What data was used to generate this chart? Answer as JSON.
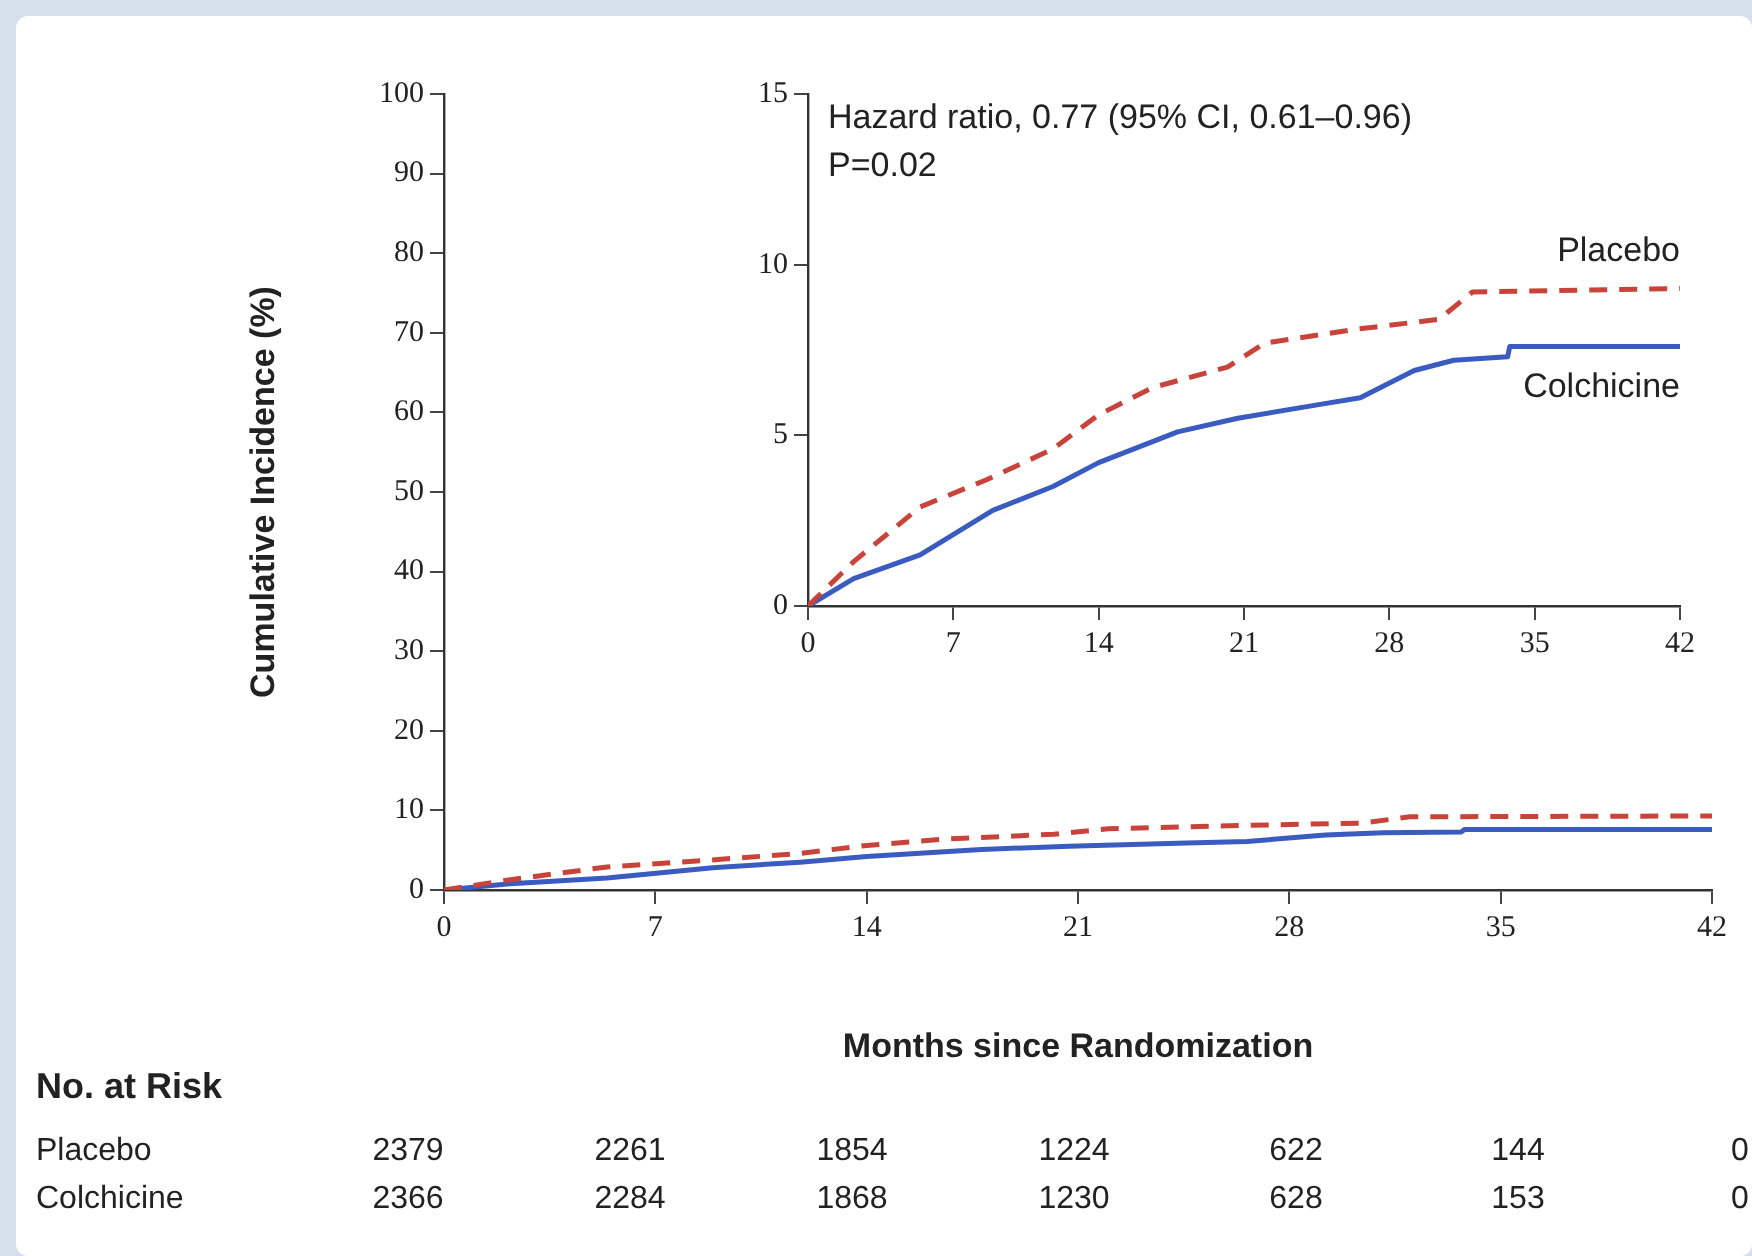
{
  "chart_data": [
    {
      "type": "line",
      "xlabel": "Months since Randomization",
      "ylabel": "Cumulative Incidence (%)",
      "xlim": [
        0,
        42
      ],
      "xticks": [
        0,
        7,
        14,
        21,
        28,
        35,
        42
      ],
      "ylim": [
        0,
        100
      ],
      "yticks": [
        0,
        10,
        20,
        30,
        40,
        50,
        60,
        70,
        80,
        90,
        100
      ],
      "grid": false,
      "legend": false,
      "series": [
        {
          "color": "#c8443a",
          "line_style": "dashed",
          "x": [
            0,
            2.2,
            5.4,
            8.6,
            11.8,
            14,
            16.6,
            20.2,
            22,
            26.3,
            30.4,
            32,
            42
          ],
          "values": [
            0,
            1.3,
            2.9,
            3.7,
            4.6,
            5.6,
            6.4,
            7.0,
            7.7,
            8.1,
            8.4,
            9.2,
            9.3
          ]
        },
        {
          "color": "#3a5bbf",
          "line_style": "solid",
          "x": [
            0,
            2.2,
            5.4,
            8.9,
            11.8,
            14,
            17.8,
            20.7,
            24.6,
            26.6,
            29.2,
            31.1,
            33.7,
            33.8,
            42
          ],
          "values": [
            0,
            0.8,
            1.5,
            2.8,
            3.5,
            4.2,
            5.1,
            5.5,
            5.9,
            6.1,
            6.9,
            7.2,
            7.3,
            7.6,
            7.6
          ]
        }
      ],
      "annotations": [
        "No. at Risk",
        "Placebo 2379 2261 1854 1224 622 144 0",
        "Colchicine 2366 2284 1868 1230 628 153 0"
      ]
    },
    {
      "type": "line",
      "xlim": [
        0,
        42
      ],
      "xticks": [
        0,
        7,
        14,
        21,
        28,
        35,
        42
      ],
      "ylim": [
        0,
        15
      ],
      "yticks": [
        0,
        5,
        10,
        15
      ],
      "grid": false,
      "legend": false,
      "series": [
        {
          "name": "Placebo",
          "color": "#c8443a",
          "line_style": "dashed",
          "x": [
            0,
            2.2,
            5.4,
            8.6,
            11.8,
            14,
            16.6,
            20.2,
            22,
            26.3,
            30.4,
            32,
            42
          ],
          "values": [
            0,
            1.3,
            2.9,
            3.7,
            4.6,
            5.6,
            6.4,
            7.0,
            7.7,
            8.1,
            8.4,
            9.2,
            9.3
          ]
        },
        {
          "name": "Colchicine",
          "color": "#3a5bbf",
          "line_style": "solid",
          "x": [
            0,
            2.2,
            5.4,
            8.9,
            11.8,
            14,
            17.8,
            20.7,
            24.6,
            26.6,
            29.2,
            31.1,
            33.7,
            33.8,
            42
          ],
          "values": [
            0,
            0.8,
            1.5,
            2.8,
            3.5,
            4.2,
            5.1,
            5.5,
            5.9,
            6.1,
            6.9,
            7.2,
            7.3,
            7.6,
            7.6
          ]
        }
      ],
      "annotations": [
        "Hazard ratio, 0.77 (95% CI, 0.61–0.96)",
        "P=0.02"
      ]
    }
  ]
}
